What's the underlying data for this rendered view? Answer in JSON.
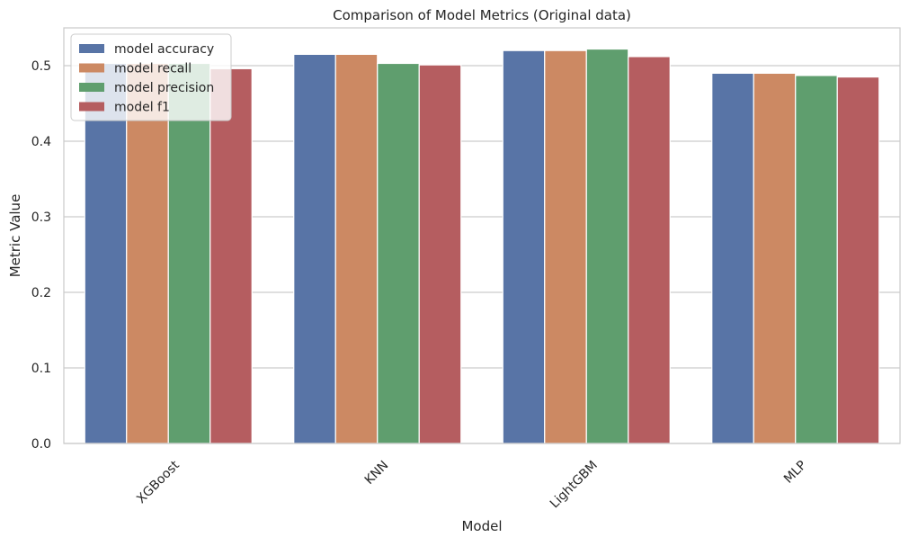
{
  "chart_data": {
    "type": "bar",
    "title": "Comparison of Model Metrics (Original data)",
    "xlabel": "Model",
    "ylabel": "Metric Value",
    "categories": [
      "XGBoost",
      "KNN",
      "LightGBM",
      "MLP"
    ],
    "ylim": [
      0,
      0.55
    ],
    "yticks": [
      0.0,
      0.1,
      0.2,
      0.3,
      0.4,
      0.5
    ],
    "ytick_labels": [
      "0.0",
      "0.1",
      "0.2",
      "0.3",
      "0.4",
      "0.5"
    ],
    "grid": "horizontal",
    "legend_position": "top-left",
    "series": [
      {
        "name": "model accuracy",
        "color": "#5874a6",
        "values": [
          0.503,
          0.515,
          0.52,
          0.49
        ]
      },
      {
        "name": "model recall",
        "color": "#cc8963",
        "values": [
          0.503,
          0.515,
          0.52,
          0.49
        ]
      },
      {
        "name": "model precision",
        "color": "#5f9e6e",
        "values": [
          0.503,
          0.503,
          0.522,
          0.487
        ]
      },
      {
        "name": "model f1",
        "color": "#b55d60",
        "values": [
          0.496,
          0.501,
          0.512,
          0.485
        ]
      }
    ]
  }
}
